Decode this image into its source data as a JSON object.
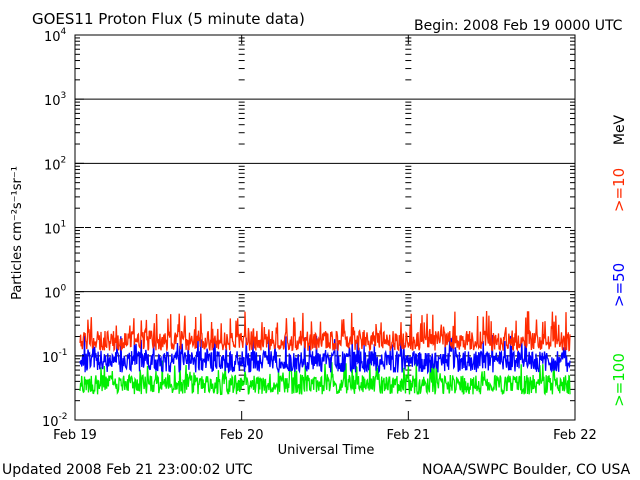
{
  "title": "GOES11 Proton Flux (5 minute data)",
  "begin_label": "Begin: 2008 Feb 19 0000 UTC",
  "footer_left": "Updated 2008 Feb 21 23:00:02 UTC",
  "footer_right": "NOAA/SWPC Boulder, CO USA",
  "chart_data": {
    "type": "line",
    "title": "GOES11 Proton Flux (5 minute data)",
    "xlabel": "Universal Time",
    "ylabel": "Particles cm⁻²s⁻¹sr⁻¹",
    "yscale": "log",
    "ylim": [
      0.01,
      10000
    ],
    "ytick_exponents": [
      -2,
      -1,
      0,
      1,
      2,
      3,
      4
    ],
    "xlim": [
      "2008-02-19",
      "2008-02-22"
    ],
    "x_tick_labels": [
      "Feb 19",
      "Feb 20",
      "Feb 21",
      "Feb 22"
    ],
    "right_label_unit": "MeV",
    "threshold_lines": [
      {
        "value": 1000,
        "style": "solid"
      },
      {
        "value": 100,
        "style": "solid"
      },
      {
        "value": 10,
        "style": "dashed"
      },
      {
        "value": 1,
        "style": "solid"
      },
      {
        "value": 0.1,
        "style": "dashed"
      }
    ],
    "series": [
      {
        "name": ">=10",
        "color": "#ff2a00",
        "base": 0.17,
        "low": 0.12,
        "high": 0.5
      },
      {
        "name": ">=50",
        "color": "#0000ff",
        "base": 0.085,
        "low": 0.055,
        "high": 0.22
      },
      {
        "name": ">=100",
        "color": "#00ee00",
        "base": 0.038,
        "low": 0.025,
        "high": 0.085
      }
    ]
  }
}
